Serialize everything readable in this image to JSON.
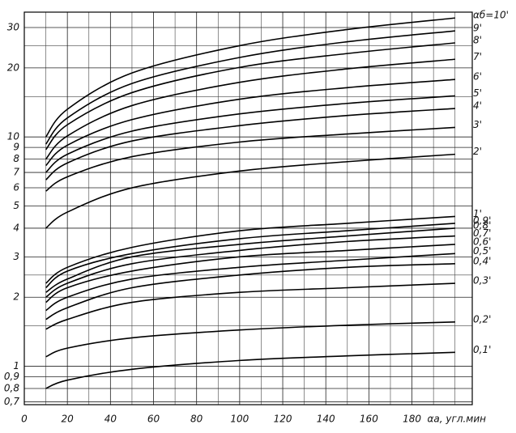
{
  "chart_data": {
    "type": "line",
    "x_label": "αа, угл.мин",
    "x": [
      10,
      20,
      50,
      100,
      150,
      200
    ],
    "xlim": [
      0,
      208
    ],
    "xticks": [
      0,
      20,
      40,
      60,
      80,
      100,
      120,
      140,
      160,
      180
    ],
    "xminor": [
      10,
      30,
      50,
      70,
      90,
      110,
      130,
      150,
      170,
      190,
      200
    ],
    "ylog": true,
    "ylim": [
      0.68,
      35
    ],
    "yticks": [
      {
        "value": 0.7,
        "label": "0,7"
      },
      {
        "value": 0.8,
        "label": "0,8"
      },
      {
        "value": 0.9,
        "label": "0,9"
      },
      1,
      2,
      3,
      4,
      5,
      6,
      7,
      8,
      9,
      10,
      20,
      30
    ],
    "yminor": [
      1.5,
      2.5,
      15,
      25
    ],
    "grid": true,
    "color": "#000000",
    "series": [
      {
        "name": "αб=10'",
        "values": [
          10,
          13.2,
          19.0,
          25.0,
          29.4,
          33
        ]
      },
      {
        "name": "9'",
        "values": [
          9.3,
          12.1,
          17.1,
          22.2,
          26.0,
          29
        ]
      },
      {
        "name": "8'",
        "values": [
          8.8,
          11.3,
          15.6,
          20.1,
          23.1,
          25.7
        ]
      },
      {
        "name": "7'",
        "values": [
          8,
          10.1,
          13.7,
          17.3,
          19.8,
          21.8
        ]
      },
      {
        "name": "6'",
        "values": [
          7.5,
          9.2,
          11.9,
          14.6,
          16.4,
          17.8
        ]
      },
      {
        "name": "5'",
        "values": [
          7,
          8.4,
          10.6,
          12.6,
          14.0,
          15.1
        ]
      },
      {
        "name": "4'",
        "values": [
          6.5,
          7.7,
          9.6,
          11.2,
          12.4,
          13.3
        ]
      },
      {
        "name": "3'",
        "values": [
          5.8,
          6.7,
          8.2,
          9.5,
          10.3,
          11
        ]
      },
      {
        "name": "2'",
        "values": [
          4,
          4.7,
          6.0,
          7.1,
          7.8,
          8.4
        ]
      },
      {
        "name": "1'",
        "values": [
          2.3,
          2.7,
          3.3,
          3.9,
          4.2,
          4.5
        ]
      },
      {
        "name": "0,9'",
        "values": [
          2.2,
          2.6,
          3.1,
          3.6,
          3.9,
          4.2
        ]
      },
      {
        "name": "0,8'",
        "values": [
          2.1,
          2.4,
          3.0,
          3.4,
          3.7,
          4.0
        ]
      },
      {
        "name": "0,7'",
        "values": [
          2.0,
          2.3,
          2.8,
          3.2,
          3.5,
          3.7
        ]
      },
      {
        "name": "0,6'",
        "values": [
          1.9,
          2.2,
          2.6,
          3.0,
          3.2,
          3.4
        ]
      },
      {
        "name": "0,5'",
        "values": [
          1.75,
          2.0,
          2.4,
          2.7,
          2.9,
          3.1
        ]
      },
      {
        "name": "0,4'",
        "values": [
          1.6,
          1.8,
          2.2,
          2.5,
          2.7,
          2.8
        ]
      },
      {
        "name": "0,3'",
        "values": [
          1.45,
          1.6,
          1.9,
          2.1,
          2.2,
          2.3
        ]
      },
      {
        "name": "0,2'",
        "values": [
          1.1,
          1.2,
          1.33,
          1.44,
          1.51,
          1.56
        ]
      },
      {
        "name": "0,1'",
        "values": [
          0.8,
          0.87,
          0.97,
          1.06,
          1.11,
          1.15
        ]
      }
    ]
  }
}
